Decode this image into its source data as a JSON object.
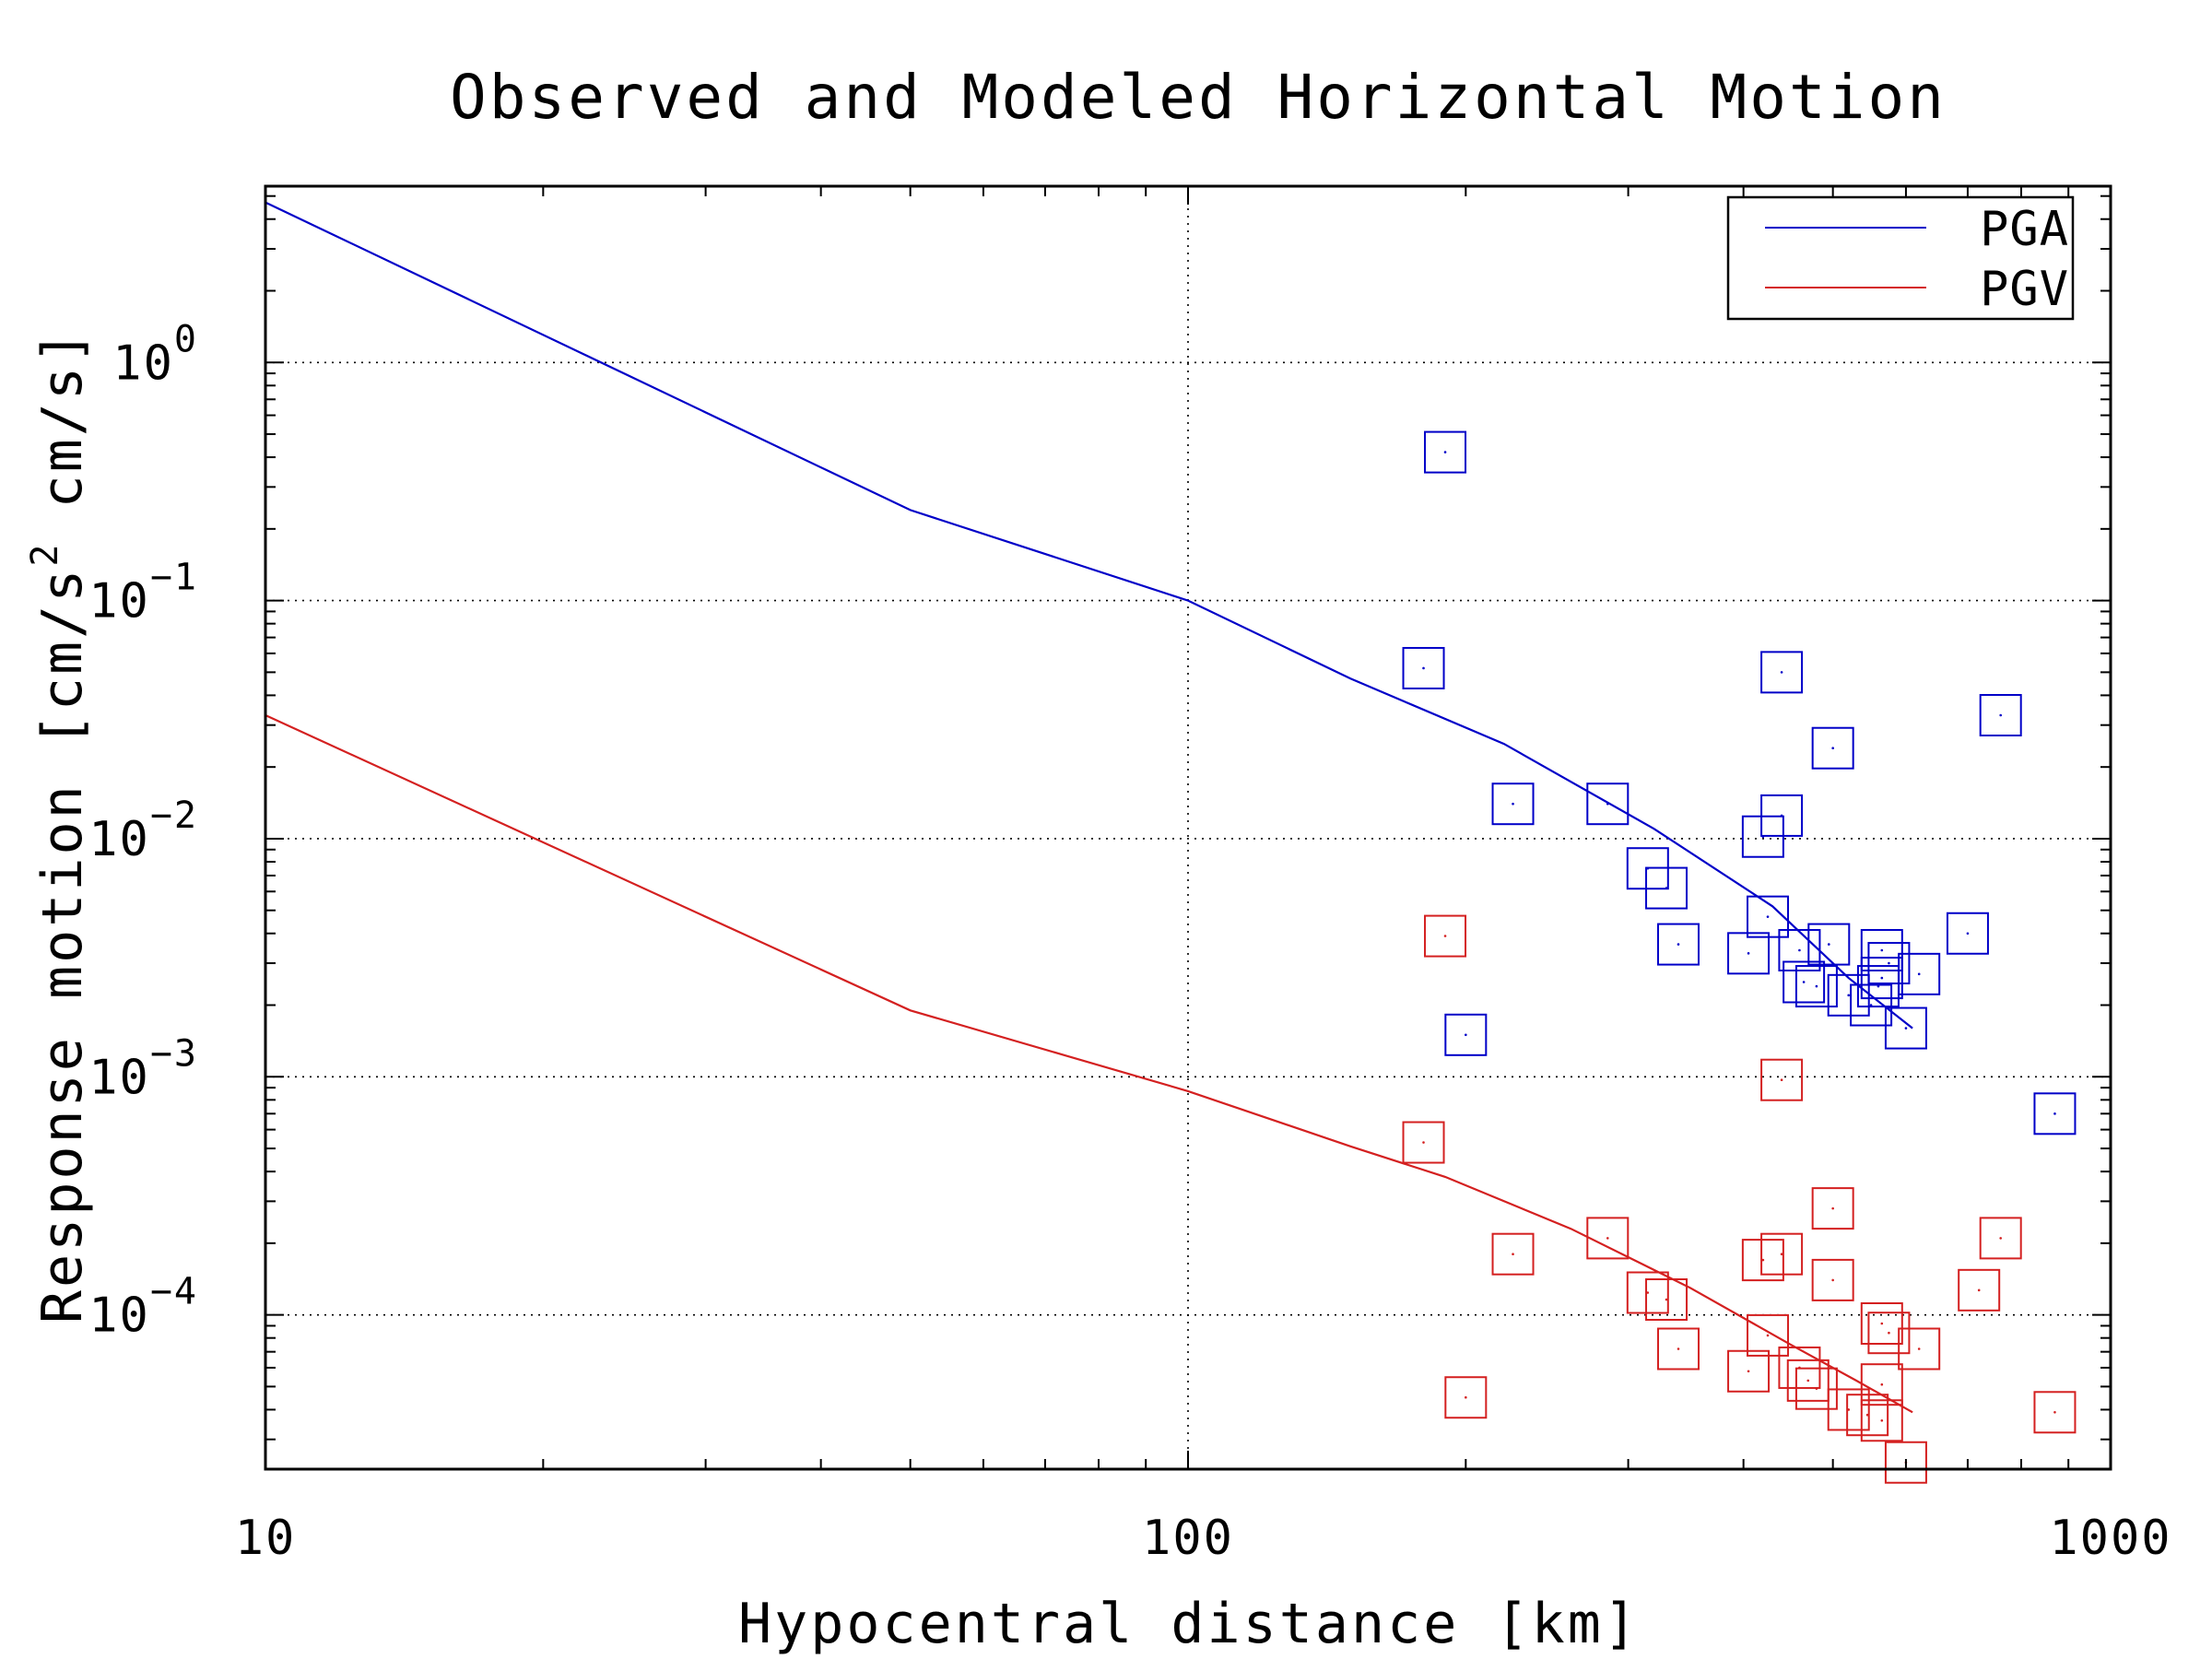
{
  "chart_data": {
    "type": "scatter",
    "title": "Observed and Modeled Horizontal Motion",
    "xlabel": "Hypocentral distance [km]",
    "ylabel": "Response motion [cm/s² cm/s]",
    "ylabel_parts": {
      "a": "Response motion [cm/s",
      "sup": "2",
      "b": "cm/s]"
    },
    "x_scale": "log",
    "y_scale": "log",
    "xlim": [
      10,
      1000
    ],
    "ylim": [
      2.25e-05,
      5.5
    ],
    "x_ticks": [
      {
        "value": 10,
        "label": "10"
      },
      {
        "value": 100,
        "label": "100"
      },
      {
        "value": 1000,
        "label": "1000"
      }
    ],
    "y_ticks": [
      {
        "value": 1,
        "base": "10",
        "exp": "0"
      },
      {
        "value": 0.1,
        "base": "10",
        "exp": "−1"
      },
      {
        "value": 0.01,
        "base": "10",
        "exp": "−2"
      },
      {
        "value": 0.001,
        "base": "10",
        "exp": "−3"
      },
      {
        "value": 0.0001,
        "base": "10",
        "exp": "−4"
      }
    ],
    "grid": true,
    "legend_position": "top-right",
    "series": [
      {
        "name": "PGA",
        "color": "#0000c8",
        "model": [
          [
            10,
            4.7
          ],
          [
            50,
            0.24
          ],
          [
            100,
            0.1
          ],
          [
            150,
            0.047
          ],
          [
            220,
            0.025
          ],
          [
            320,
            0.011
          ],
          [
            430,
            0.0052
          ],
          [
            520,
            0.0026
          ],
          [
            610,
            0.0016
          ]
        ],
        "observed": [
          [
            190,
            0.42
          ],
          [
            180,
            0.052
          ],
          [
            440,
            0.05
          ],
          [
            760,
            0.033
          ],
          [
            500,
            0.024
          ],
          [
            225,
            0.014
          ],
          [
            285,
            0.014
          ],
          [
            440,
            0.0125
          ],
          [
            420,
            0.0102
          ],
          [
            315,
            0.0075
          ],
          [
            330,
            0.0062
          ],
          [
            425,
            0.0047
          ],
          [
            340,
            0.0036
          ],
          [
            405,
            0.0033
          ],
          [
            460,
            0.0034
          ],
          [
            495,
            0.0036
          ],
          [
            565,
            0.0034
          ],
          [
            575,
            0.003
          ],
          [
            465,
            0.0025
          ],
          [
            480,
            0.0024
          ],
          [
            520,
            0.0022
          ],
          [
            560,
            0.0024
          ],
          [
            565,
            0.0026
          ],
          [
            550,
            0.002
          ],
          [
            600,
            0.0016
          ],
          [
            620,
            0.0027
          ],
          [
            700,
            0.004
          ],
          [
            200,
            0.0015
          ],
          [
            870,
            0.0007
          ]
        ]
      },
      {
        "name": "PGV",
        "color": "#d42020",
        "model": [
          [
            10,
            0.033
          ],
          [
            50,
            0.0019
          ],
          [
            100,
            0.00087
          ],
          [
            150,
            0.00051
          ],
          [
            190,
            0.00038
          ],
          [
            260,
            0.00023
          ],
          [
            350,
            0.00013
          ],
          [
            450,
            7.5e-05
          ],
          [
            530,
            5.3e-05
          ],
          [
            610,
            3.9e-05
          ]
        ],
        "observed": [
          [
            190,
            0.0039
          ],
          [
            440,
            0.00097
          ],
          [
            180,
            0.00053
          ],
          [
            500,
            0.00028
          ],
          [
            285,
            0.00021
          ],
          [
            760,
            0.00021
          ],
          [
            225,
            0.00018
          ],
          [
            440,
            0.00018
          ],
          [
            420,
            0.00017
          ],
          [
            500,
            0.00014
          ],
          [
            315,
            0.000124
          ],
          [
            330,
            0.000116
          ],
          [
            720,
            0.000127
          ],
          [
            565,
            9.2e-05
          ],
          [
            575,
            8.4e-05
          ],
          [
            425,
            8.2e-05
          ],
          [
            340,
            7.2e-05
          ],
          [
            620,
            7.2e-05
          ],
          [
            460,
            6e-05
          ],
          [
            405,
            5.8e-05
          ],
          [
            470,
            5.3e-05
          ],
          [
            480,
            4.9e-05
          ],
          [
            520,
            4e-05
          ],
          [
            545,
            3.8e-05
          ],
          [
            565,
            3.6e-05
          ],
          [
            565,
            5.1e-05
          ],
          [
            200,
            4.5e-05
          ],
          [
            600,
            2.4e-05
          ],
          [
            870,
            3.9e-05
          ]
        ]
      }
    ]
  }
}
